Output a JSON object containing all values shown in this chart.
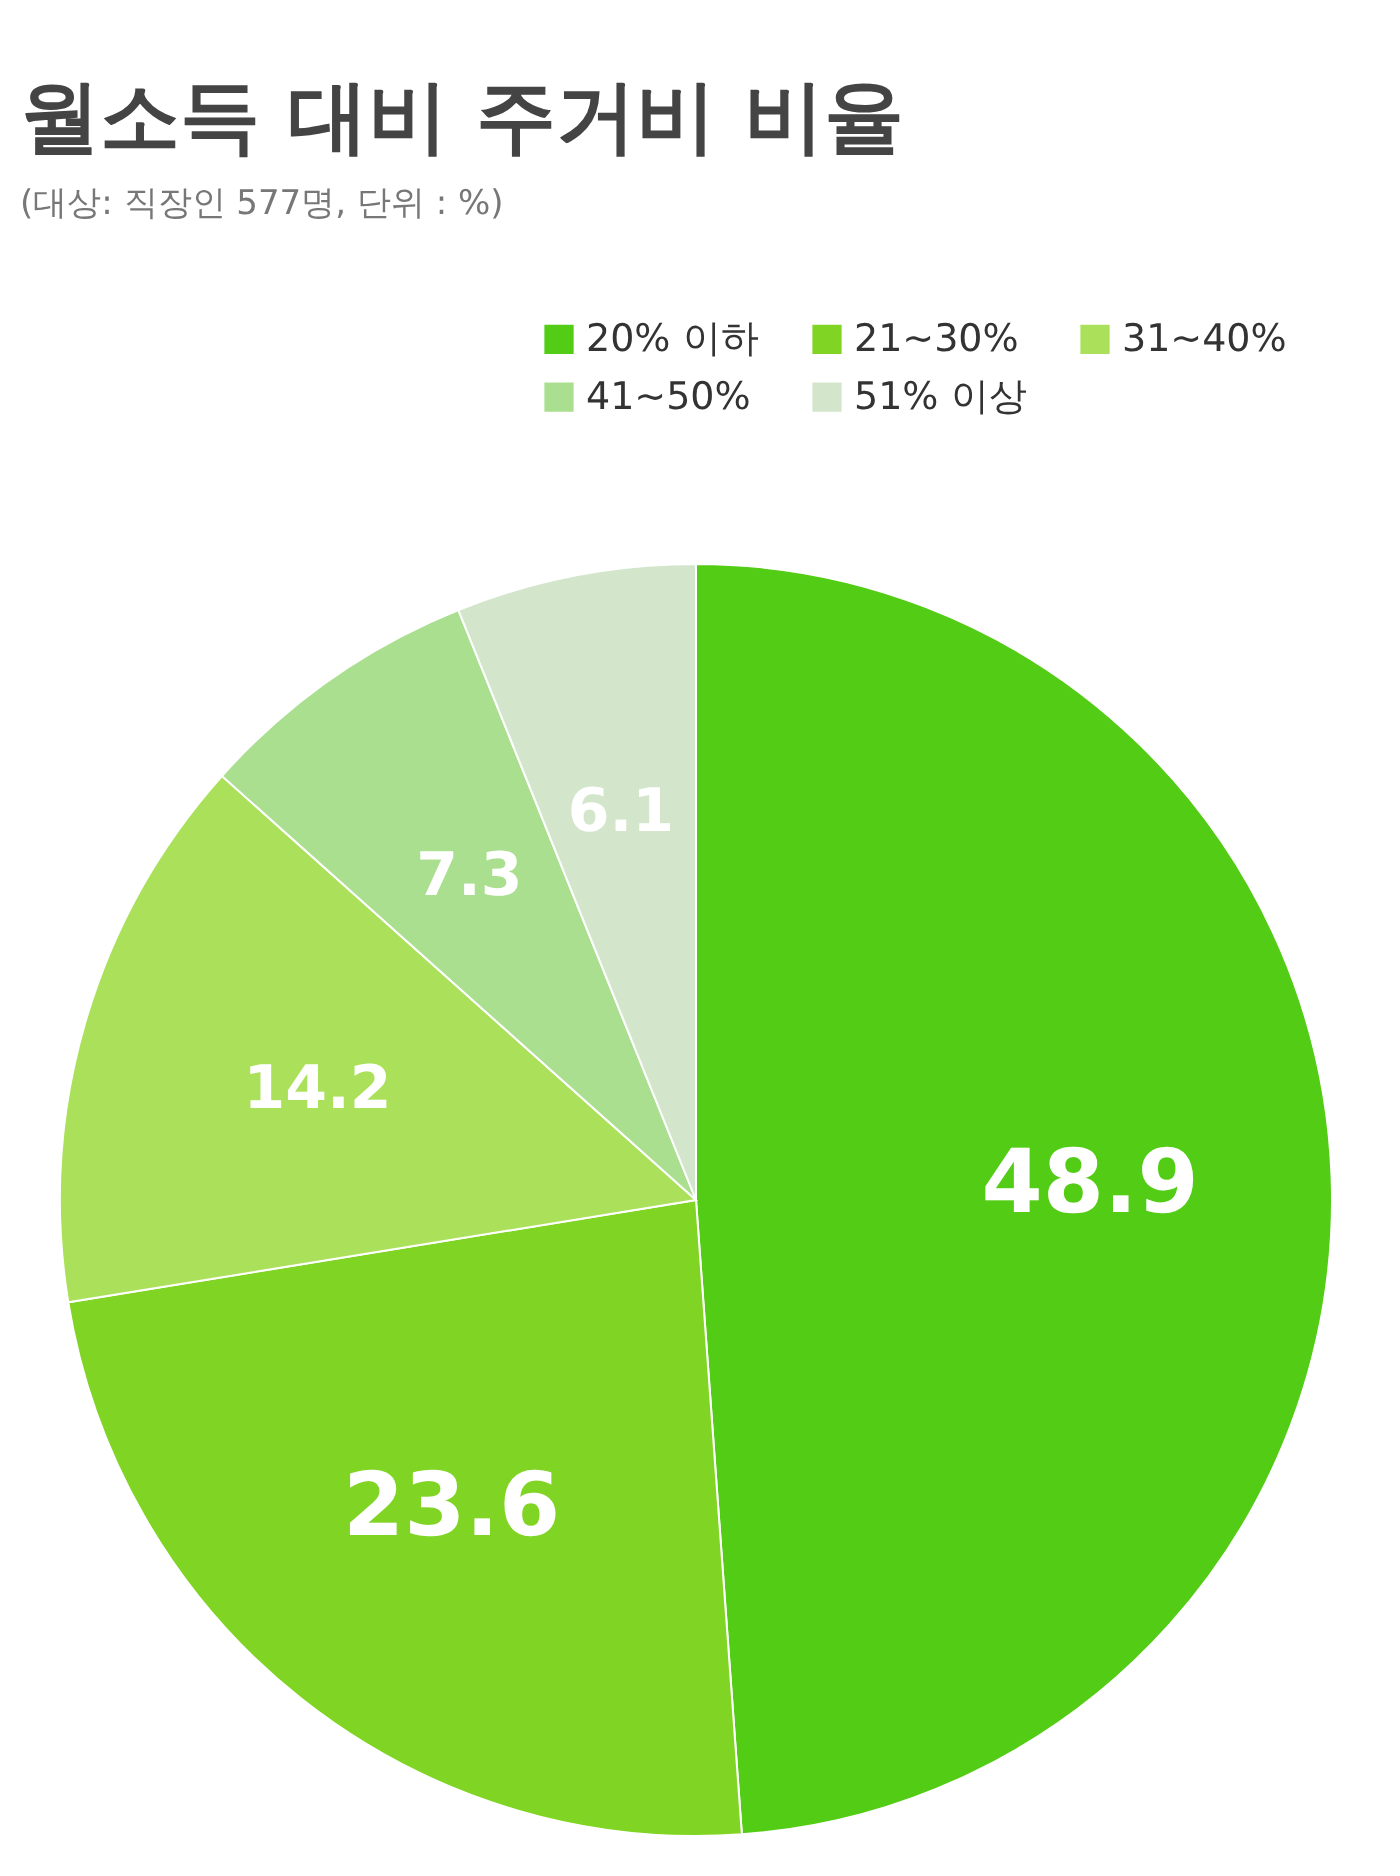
{
  "chart_data": {
    "type": "pie",
    "title": "월소득 대비 주거비 비율",
    "subtitle": "(대상: 직장인 577명, 단위 : %)",
    "categories": [
      "20% 이하",
      "21~30%",
      "31~40%",
      "41~50%",
      "51% 이상"
    ],
    "values": [
      48.9,
      23.6,
      14.2,
      7.3,
      6.1
    ],
    "colors": [
      "#52cc14",
      "#80d423",
      "#abe05a",
      "#aadf90",
      "#d3e6cc"
    ],
    "data_labels": true,
    "legend": "top right"
  }
}
